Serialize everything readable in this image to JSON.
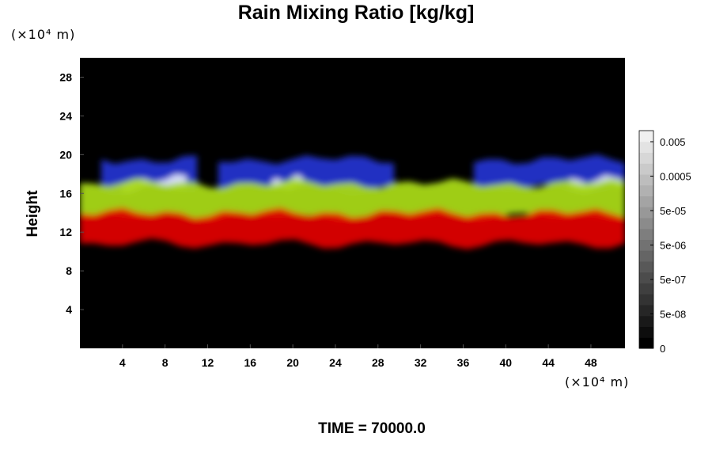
{
  "chart_data": {
    "type": "heatmap",
    "title": "Rain Mixing Ratio [kg/kg]",
    "ylabel": "Height",
    "xlabel": "",
    "x_unit": "(×10⁴ m)",
    "y_unit": "(×10⁴ m)",
    "footer": "TIME = 70000.0",
    "xlim": [
      0,
      51.2
    ],
    "ylim": [
      0,
      30
    ],
    "x_ticks": [
      4,
      8,
      12,
      16,
      20,
      24,
      28,
      32,
      36,
      40,
      44,
      48
    ],
    "y_ticks": [
      4,
      8,
      12,
      16,
      20,
      24,
      28
    ],
    "background_color": "#000000",
    "layers": [
      {
        "color": "#2233cc",
        "y_range": [
          16.5,
          19.5
        ],
        "x_segments": [
          [
            2,
            11
          ],
          [
            13,
            29.5
          ],
          [
            37,
            51.2
          ]
        ]
      },
      {
        "color": "#e0e6ff",
        "y_range": [
          16.5,
          17.5
        ],
        "x_segments": [
          [
            4,
            10
          ],
          [
            18,
            21
          ],
          [
            46,
            51
          ]
        ]
      },
      {
        "color": "#a8d818",
        "y_range": [
          13.5,
          17
        ],
        "x_segments": [
          [
            0,
            51.2
          ]
        ]
      },
      {
        "color": "#dd0000",
        "y_range": [
          10.8,
          14
        ],
        "x_segments": [
          [
            0,
            51.2
          ]
        ]
      }
    ],
    "colorbar": {
      "labels": [
        "0.005",
        "0.0005",
        "5e-05",
        "5e-06",
        "5e-07",
        "5e-08",
        "0"
      ],
      "levels": 20,
      "min_color": "#000000",
      "max_color": "#f0f0f0"
    }
  }
}
